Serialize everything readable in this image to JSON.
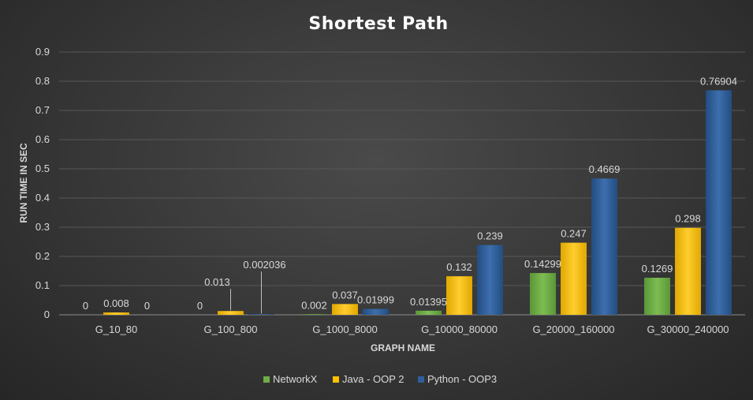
{
  "chart_data": {
    "type": "bar",
    "title": "Shortest Path",
    "xlabel": "GRAPH NAME",
    "ylabel": "RUN TIME IN SEC",
    "ylim": [
      0,
      0.9
    ],
    "yticks": [
      "0",
      "0.1",
      "0.2",
      "0.3",
      "0.4",
      "0.5",
      "0.6",
      "0.7",
      "0.8",
      "0.9"
    ],
    "grid": true,
    "legend_position": "bottom",
    "categories": [
      "G_10_80",
      "G_100_800",
      "G_1000_8000",
      "G_10000_80000",
      "G_20000_160000",
      "G_30000_240000"
    ],
    "series": [
      {
        "name": "NetworkX",
        "color": "#70ad47",
        "values": [
          0,
          0,
          0.002,
          0.01395,
          0.14299,
          0.1269
        ],
        "labels": [
          "0",
          "0",
          "0.002",
          "0.01395",
          "0.14299",
          "0.1269"
        ]
      },
      {
        "name": "Java - OOP 2",
        "color": "#ffc000",
        "values": [
          0.008,
          0.013,
          0.037,
          0.132,
          0.247,
          0.298
        ],
        "labels": [
          "0.008",
          "0.013",
          "0.037",
          "0.132",
          "0.247",
          "0.298"
        ]
      },
      {
        "name": "Python - OOP3",
        "color": "#2e5f9a",
        "values": [
          0,
          0.002036,
          0.01999,
          0.239,
          0.4669,
          0.76904
        ],
        "labels": [
          "0",
          "0.002036",
          "0.01999",
          "0.239",
          "0.4669",
          "0.76904"
        ]
      }
    ]
  }
}
